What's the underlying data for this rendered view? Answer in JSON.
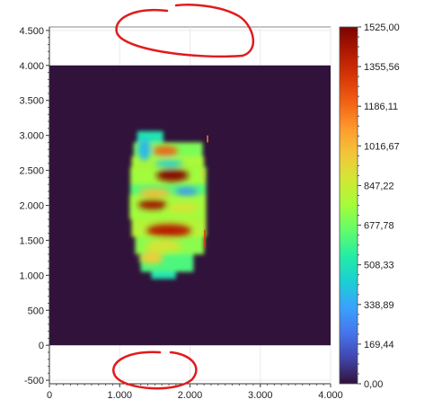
{
  "chart_data": {
    "type": "heatmap",
    "title": "",
    "xlabel": "",
    "ylabel": "",
    "xlim": [
      0,
      4000
    ],
    "ylim": [
      -550,
      4550
    ],
    "x_ticks": [
      {
        "value": 0,
        "label": "0"
      },
      {
        "value": 1000,
        "label": "1.000"
      },
      {
        "value": 2000,
        "label": "2.000"
      },
      {
        "value": 3000,
        "label": "3.000"
      },
      {
        "value": 4000,
        "label": "4.000"
      }
    ],
    "y_ticks": [
      {
        "value": 4500,
        "label": "4.500"
      },
      {
        "value": 4000,
        "label": "4.000"
      },
      {
        "value": 3500,
        "label": "3.500"
      },
      {
        "value": 3000,
        "label": "3.000"
      },
      {
        "value": 2500,
        "label": "2.500"
      },
      {
        "value": 2000,
        "label": "2.000"
      },
      {
        "value": 1500,
        "label": "1.500"
      },
      {
        "value": 1000,
        "label": "1.000"
      },
      {
        "value": 500,
        "label": "500"
      },
      {
        "value": 0,
        "label": "0"
      },
      {
        "value": -500,
        "label": "-500"
      }
    ],
    "data_extent": {
      "x": [
        0,
        4000
      ],
      "y": [
        0,
        4000
      ]
    },
    "grid": true,
    "background_value": 0,
    "colorbar": {
      "min": 0,
      "max": 1525,
      "labels": [
        "1525,00",
        "1355,56",
        "1186,11",
        "1016,67",
        "847,22",
        "677,78",
        "508,33",
        "338,89",
        "169,44",
        "0,00"
      ],
      "colormap": [
        "#30123b",
        "#4145ab",
        "#4675ed",
        "#39a2fc",
        "#1bcfd4",
        "#24eca6",
        "#61fc6c",
        "#a4fc3b",
        "#d1e834",
        "#f3c63a",
        "#fe9b2d",
        "#f36315",
        "#d93806",
        "#b11901",
        "#7a0402"
      ]
    },
    "rows": [
      {
        "y": [
          2900,
          3060
        ],
        "x": [
          1250,
          1620
        ],
        "v": 520
      },
      {
        "y": [
          2700,
          2900
        ],
        "x": [
          1200,
          2180
        ],
        "v": 700
      },
      {
        "y": [
          2550,
          2700
        ],
        "x": [
          1170,
          2200
        ],
        "v": 780
      },
      {
        "y": [
          2300,
          2550
        ],
        "x": [
          1150,
          2230
        ],
        "v": 760
      },
      {
        "y": [
          2150,
          2300
        ],
        "x": [
          1150,
          2230
        ],
        "v": 640
      },
      {
        "y": [
          1800,
          2150
        ],
        "x": [
          1140,
          2230
        ],
        "v": 760
      },
      {
        "y": [
          1550,
          1800
        ],
        "x": [
          1170,
          2230
        ],
        "v": 800
      },
      {
        "y": [
          1300,
          1550
        ],
        "x": [
          1220,
          2200
        ],
        "v": 720
      },
      {
        "y": [
          1050,
          1300
        ],
        "x": [
          1300,
          2050
        ],
        "v": 620
      },
      {
        "y": [
          950,
          1050
        ],
        "x": [
          1450,
          1800
        ],
        "v": 520
      }
    ],
    "blobs": [
      {
        "x": 1650,
        "y": 2780,
        "rx": 180,
        "ry": 70,
        "v": 1200
      },
      {
        "x": 1750,
        "y": 2430,
        "rx": 230,
        "ry": 90,
        "v": 1500
      },
      {
        "x": 1500,
        "y": 2180,
        "rx": 230,
        "ry": 60,
        "v": 1000
      },
      {
        "x": 1470,
        "y": 2010,
        "rx": 210,
        "ry": 70,
        "v": 1450
      },
      {
        "x": 1900,
        "y": 1960,
        "rx": 220,
        "ry": 70,
        "v": 880
      },
      {
        "x": 1700,
        "y": 1640,
        "rx": 320,
        "ry": 90,
        "v": 1400
      },
      {
        "x": 1620,
        "y": 1420,
        "rx": 260,
        "ry": 90,
        "v": 880
      },
      {
        "x": 1350,
        "y": 2800,
        "rx": 90,
        "ry": 160,
        "v": 380
      },
      {
        "x": 1450,
        "y": 1250,
        "rx": 170,
        "ry": 90,
        "v": 950
      },
      {
        "x": 1950,
        "y": 2200,
        "rx": 160,
        "ry": 50,
        "v": 280
      },
      {
        "x": 1700,
        "y": 2600,
        "rx": 200,
        "ry": 50,
        "v": 430
      }
    ],
    "lines": [
      {
        "x": [
          2240,
          2250
        ],
        "y": [
          2900,
          3000
        ],
        "v": 1150
      },
      {
        "x": [
          2180,
          2200
        ],
        "y": [
          2380,
          2520
        ],
        "v": 1050
      },
      {
        "x": [
          2200,
          2220
        ],
        "y": [
          1400,
          1650
        ],
        "v": 1300
      }
    ]
  }
}
